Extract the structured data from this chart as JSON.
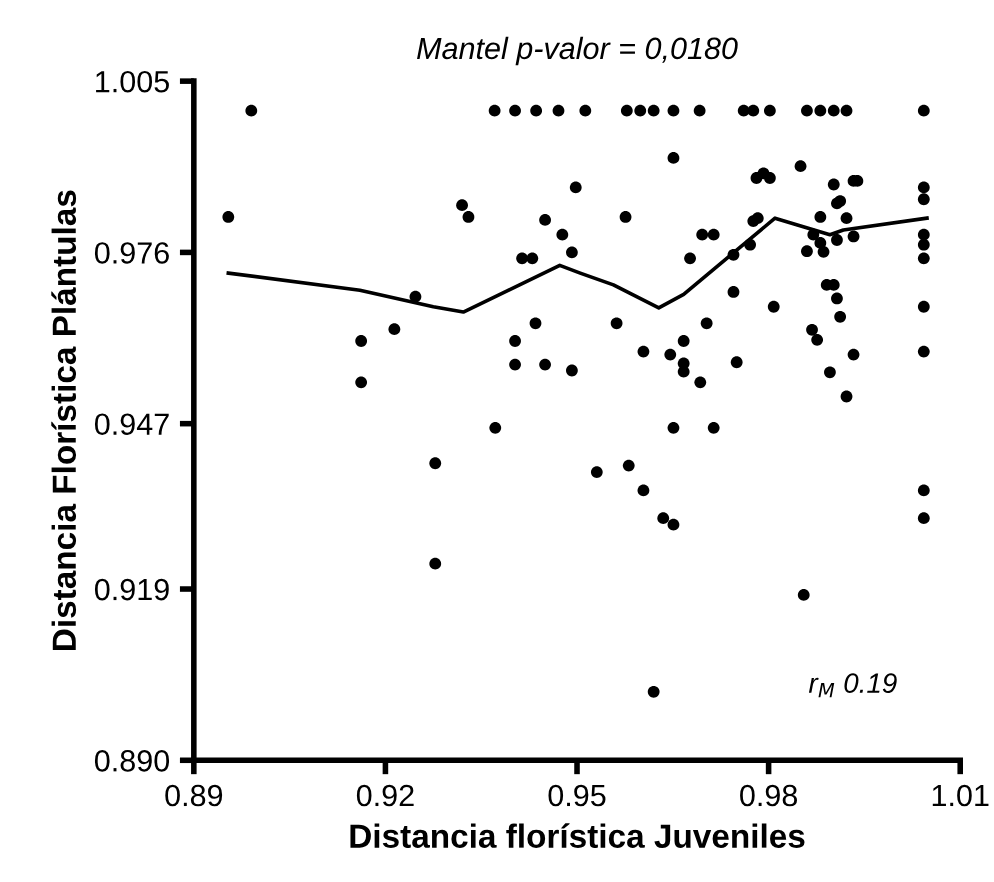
{
  "chart_data": {
    "type": "scatter",
    "title": "Mantel p-valor = 0,0180",
    "xlabel": "Distancia florística Juveniles",
    "ylabel": "Distancia Florística Plántulas",
    "annotations": [
      "r$_{M}$ 0.19"
    ],
    "series": [
      {
        "color": "#000000",
        "marker": "circle",
        "x": [
          0.899,
          0.8954,
          0.9371,
          0.9403,
          0.9436,
          0.9471,
          0.932,
          0.933,
          0.9247,
          0.9162,
          0.9214,
          0.9162,
          0.9498,
          0.945,
          0.9477,
          0.9492,
          0.9414,
          0.943,
          0.9435,
          0.9403,
          0.9403,
          0.945,
          0.9492,
          0.9513,
          0.9578,
          0.9599,
          0.962,
          0.9651,
          0.9692,
          0.9761,
          0.9776,
          0.9802,
          0.986,
          0.9881,
          0.9902,
          0.9922,
          1.0043,
          0.9651,
          0.9576,
          0.9781,
          0.9802,
          0.9792,
          0.985,
          0.9902,
          0.9933,
          0.9939,
          0.9907,
          0.9912,
          1.0043,
          1.0043,
          0.9881,
          0.9922,
          0.9776,
          0.9783,
          0.9696,
          0.9714,
          0.987,
          1.0043,
          1.0043,
          1.0043,
          0.9745,
          0.9771,
          0.9677,
          0.986,
          0.9881,
          0.9886,
          0.9907,
          0.9933,
          0.9891,
          0.9902,
          0.9907,
          0.9745,
          0.9912,
          0.9808,
          1.0043,
          0.9562,
          0.9703,
          0.9667,
          0.9868,
          0.9876,
          0.9604,
          0.9646,
          0.9667,
          0.9667,
          0.975,
          0.9933,
          1.0043,
          0.9693,
          0.9896,
          0.9922,
          0.9372,
          0.9278,
          0.9278,
          0.9651,
          0.9714,
          0.9531,
          0.9581,
          0.9604,
          0.9635,
          0.9651,
          1.0043,
          1.0043,
          0.9855,
          0.962
        ],
        "values": [
          1.0,
          0.982,
          1.0,
          1.0,
          1.0,
          1.0,
          0.984,
          0.982,
          0.9685,
          0.961,
          0.963,
          0.954,
          0.987,
          0.9815,
          0.979,
          0.976,
          0.975,
          0.975,
          0.964,
          0.961,
          0.957,
          0.957,
          0.956,
          1.0,
          1.0,
          1.0,
          1.0,
          1.0,
          1.0,
          1.0,
          1.0,
          1.0,
          1.0,
          1.0,
          1.0,
          1.0,
          1.0,
          0.992,
          0.982,
          0.9886,
          0.9886,
          0.9894,
          0.9906,
          0.9875,
          0.9881,
          0.9881,
          0.9843,
          0.9847,
          0.987,
          0.985,
          0.982,
          0.9818,
          0.9813,
          0.9818,
          0.979,
          0.979,
          0.979,
          0.979,
          0.9773,
          0.975,
          0.9756,
          0.9773,
          0.975,
          0.9762,
          0.9776,
          0.9761,
          0.9781,
          0.9787,
          0.9705,
          0.9705,
          0.9682,
          0.9693,
          0.9651,
          0.9668,
          0.9668,
          0.964,
          0.964,
          0.961,
          0.9629,
          0.9612,
          0.9592,
          0.9587,
          0.9572,
          0.9558,
          0.9574,
          0.9587,
          0.9592,
          0.954,
          0.9557,
          0.9516,
          0.9463,
          0.9403,
          0.9233,
          0.9463,
          0.9463,
          0.9388,
          0.9399,
          0.9357,
          0.931,
          0.9299,
          0.9357,
          0.931,
          0.918,
          0.9016
        ]
      },
      {
        "type": "line",
        "color": "#000000",
        "x": [
          0.8954,
          0.916,
          0.9275,
          0.9322,
          0.9473,
          0.9505,
          0.9557,
          0.9628,
          0.9667,
          0.981,
          0.9896,
          0.9917,
          1.0048
        ],
        "values": [
          0.9725,
          0.9696,
          0.9668,
          0.9659,
          0.9738,
          0.9725,
          0.9705,
          0.9666,
          0.9689,
          0.9818,
          0.979,
          0.9798,
          0.9818
        ]
      }
    ],
    "xlim": [
      0.89,
      1.01
    ],
    "xticks": [
      0.89,
      0.92,
      0.95,
      0.98,
      1.01
    ],
    "ylim": [
      0.89,
      1.005
    ],
    "yticks": [
      {
        "value": 0.89,
        "label": "0.890"
      },
      0.919,
      0.947,
      0.976,
      1.005
    ],
    "grid": false,
    "legend": false
  }
}
